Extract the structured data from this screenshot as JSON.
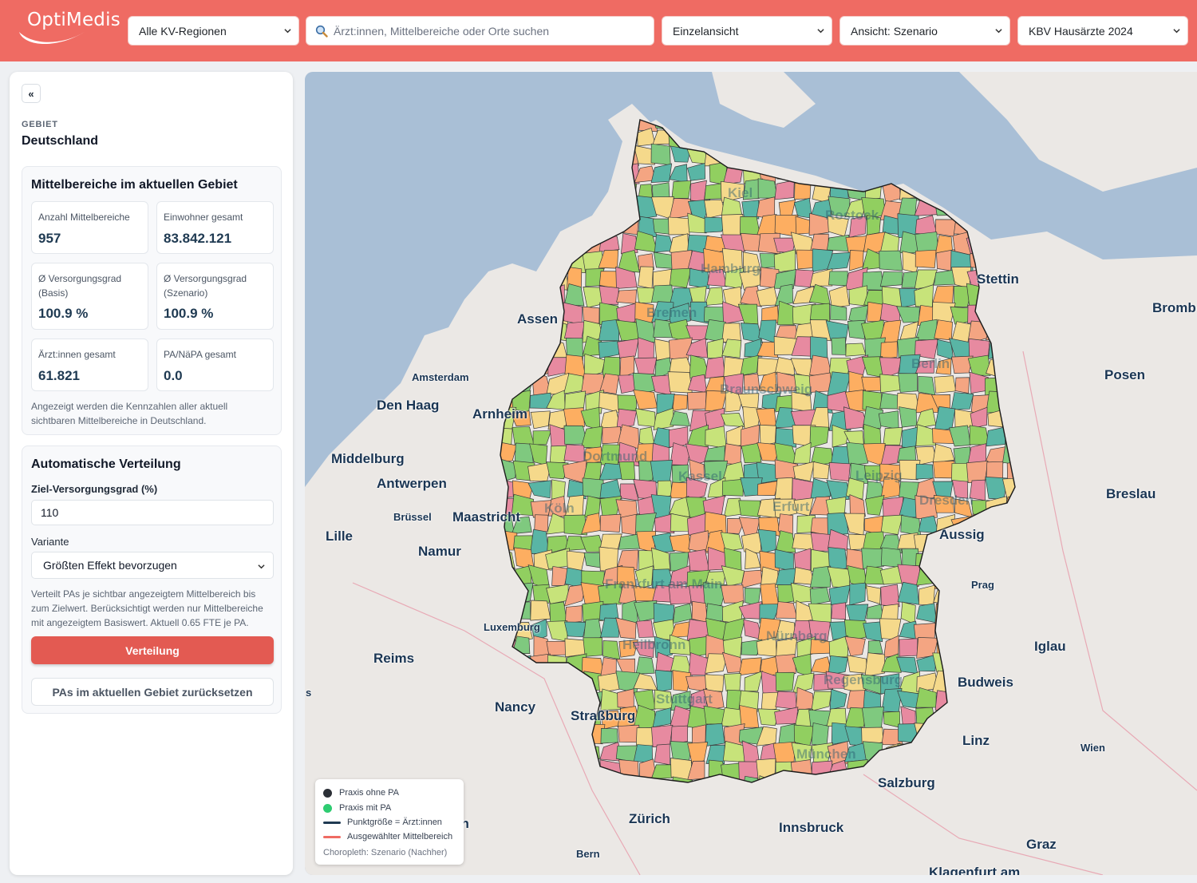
{
  "header": {
    "logo_text": "OptiMedis",
    "region_select": "Alle KV-Regionen",
    "search_placeholder": "Ärzt:innen, Mittelbereiche oder Orte suchen",
    "view_mode_select": "Einzelansicht",
    "scenario_select": "Ansicht: Szenario",
    "dataset_select": "KBV Hausärzte 2024"
  },
  "sidebar": {
    "collapse_label": "«",
    "area_label": "GEBIET",
    "area_name": "Deutschland",
    "summary": {
      "title": "Mittelbereiche im aktuellen Gebiet",
      "kpis": [
        {
          "label": "Anzahl Mittelbereiche",
          "value": "957"
        },
        {
          "label": "Einwohner gesamt",
          "value": "83.842.121"
        },
        {
          "label": "Ø Versorgungsgrad (Basis)",
          "value": "100.9 %"
        },
        {
          "label": "Ø Versorgungsgrad (Szenario)",
          "value": "100.9 %"
        },
        {
          "label": "Ärzt:innen gesamt",
          "value": "61.821"
        },
        {
          "label": "PA/NäPA gesamt",
          "value": "0.0"
        }
      ],
      "note": "Angezeigt werden die Kennzahlen aller aktuell sichtbaren Mittelbereiche in Deutschland."
    },
    "distribution": {
      "title": "Automatische Verteilung",
      "target_label": "Ziel-Versorgungsgrad (%)",
      "target_value": "110",
      "variant_label": "Variante",
      "variant_value": "Größten Effekt bevorzugen",
      "help": "Verteilt PAs je sichtbar angezeigtem Mittelbereich bis zum Zielwert. Berücksichtigt werden nur Mittelbereiche mit angezeigtem Basiswert. Aktuell 0.65 FTE je PA.",
      "apply_button": "Verteilung",
      "reset_button": "PAs im aktuellen Gebiet zurücksetzen"
    }
  },
  "map": {
    "places": [
      {
        "name": "Assen",
        "size": "lg"
      },
      {
        "name": "Amsterdam",
        "size": "sm"
      },
      {
        "name": "Den Haag",
        "size": "lg"
      },
      {
        "name": "Arnheim",
        "size": "lg"
      },
      {
        "name": "Middelburg",
        "size": "lg"
      },
      {
        "name": "Antwerpen",
        "size": "lg"
      },
      {
        "name": "Brüssel",
        "size": "sm"
      },
      {
        "name": "Maastricht",
        "size": "lg"
      },
      {
        "name": "Lille",
        "size": "lg"
      },
      {
        "name": "Namur",
        "size": "lg"
      },
      {
        "name": "Luxemburg",
        "size": "sm"
      },
      {
        "name": "Reims",
        "size": "lg"
      },
      {
        "name": "Nancy",
        "size": "lg"
      },
      {
        "name": "Straßburg",
        "size": "lg"
      },
      {
        "name": "Zürich",
        "size": "lg"
      },
      {
        "name": "Bern",
        "size": "sm"
      },
      {
        "name": "Innsbruck",
        "size": "lg"
      },
      {
        "name": "Salzburg",
        "size": "lg"
      },
      {
        "name": "Linz",
        "size": "lg"
      },
      {
        "name": "Wien",
        "size": "sm"
      },
      {
        "name": "Graz",
        "size": "lg"
      },
      {
        "name": "Klagenfurt am",
        "size": "lg"
      },
      {
        "name": "Budweis",
        "size": "lg"
      },
      {
        "name": "Iglau",
        "size": "lg"
      },
      {
        "name": "Prag",
        "size": "sm"
      },
      {
        "name": "Aussig",
        "size": "lg"
      },
      {
        "name": "Breslau",
        "size": "lg"
      },
      {
        "name": "Posen",
        "size": "lg"
      },
      {
        "name": "Bromb",
        "size": "lg"
      },
      {
        "name": "Stettin",
        "size": "lg"
      },
      {
        "name": "Kiel",
        "size": "faint"
      },
      {
        "name": "Rostock",
        "size": "faint"
      },
      {
        "name": "Hamburg",
        "size": "faint"
      },
      {
        "name": "Bremen",
        "size": "faint"
      },
      {
        "name": "Berlin",
        "size": "faint"
      },
      {
        "name": "Braunschweig",
        "size": "faint"
      },
      {
        "name": "Dortmund",
        "size": "faint"
      },
      {
        "name": "Kassel",
        "size": "faint"
      },
      {
        "name": "Köln",
        "size": "faint"
      },
      {
        "name": "Erfurt",
        "size": "faint"
      },
      {
        "name": "Leipzig",
        "size": "faint"
      },
      {
        "name": "Dresden",
        "size": "faint"
      },
      {
        "name": "Frankfurt am Main",
        "size": "faint"
      },
      {
        "name": "Nürnberg",
        "size": "faint"
      },
      {
        "name": "Heilbronn",
        "size": "faint"
      },
      {
        "name": "Regensburg",
        "size": "faint"
      },
      {
        "name": "Stuttgart",
        "size": "faint"
      },
      {
        "name": "München",
        "size": "faint"
      },
      {
        "name": "s",
        "size": "sm"
      },
      {
        "name": "Lion",
        "size": "lg"
      }
    ],
    "legend": {
      "items": [
        {
          "label": "Praxis ohne PA",
          "kind": "dot",
          "color": "#2b2f36"
        },
        {
          "label": "Praxis mit PA",
          "kind": "dot",
          "color": "#2ecc71"
        },
        {
          "label": "Punktgröße = Ärzt:innen",
          "kind": "line",
          "color": "#1f3a52"
        },
        {
          "label": "Ausgewählter Mittelbereich",
          "kind": "line",
          "color": "#ef6b63"
        }
      ],
      "footer": "Choropleth: Szenario (Nachher)"
    },
    "colors": {
      "water": "#a9bfd6",
      "land": "#ebe8e5",
      "choropleth": [
        "#91cf60",
        "#c7e37a",
        "#f5d98b",
        "#fdae61",
        "#f4a582",
        "#e78aa0",
        "#59b5a5",
        "#7fc97f"
      ]
    }
  }
}
